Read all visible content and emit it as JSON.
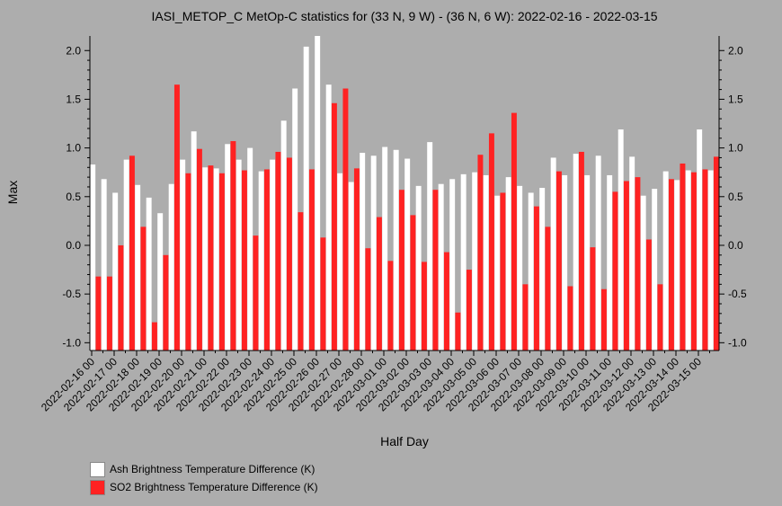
{
  "chart_data": {
    "type": "bar",
    "title": "IASI_METOP_C MetOp-C statistics for (33 N, 9 W) - (36 N, 6 W): 2022-02-16 - 2022-03-15",
    "xlabel": "Half Day",
    "ylabel": "Max",
    "ylim": [
      -1.08,
      2.15
    ],
    "yticks": [
      "-1.0",
      "-0.5",
      "0.0",
      "0.5",
      "1.0",
      "1.5",
      "2.0"
    ],
    "xticks": [
      "2022-02-16 00",
      "2022-02-17 00",
      "2022-02-18 00",
      "2022-02-19 00",
      "2022-02-20 00",
      "2022-02-21 00",
      "2022-02-22 00",
      "2022-02-23 00",
      "2022-02-24 00",
      "2022-02-25 00",
      "2022-02-26 00",
      "2022-02-27 00",
      "2022-02-28 00",
      "2022-03-01 00",
      "2022-03-02 00",
      "2022-03-03 00",
      "2022-03-04 00",
      "2022-03-05 00",
      "2022-03-06 00",
      "2022-03-07 00",
      "2022-03-08 00",
      "2022-03-09 00",
      "2022-03-10 00",
      "2022-03-11 00",
      "2022-03-12 00",
      "2022-03-13 00",
      "2022-03-14 00",
      "2022-03-15 00"
    ],
    "legend_position": "bottom-left",
    "series": [
      {
        "name": "Ash Brightness Temperature Difference (K)",
        "color": "#ffffff",
        "values": [
          0.83,
          0.68,
          0.54,
          0.88,
          0.62,
          0.49,
          0.33,
          0.63,
          0.88,
          1.17,
          0.8,
          0.79,
          1.04,
          0.88,
          1.0,
          0.76,
          0.88,
          1.28,
          1.61,
          2.04,
          2.15,
          1.65,
          0.74,
          0.65,
          0.95,
          0.92,
          1.01,
          0.98,
          0.89,
          0.61,
          1.06,
          0.63,
          0.68,
          0.73,
          0.75,
          0.72,
          0.51,
          0.7,
          0.61,
          0.54,
          0.59,
          0.9,
          0.72,
          0.94,
          0.72,
          0.92,
          0.72,
          1.19,
          0.91,
          0.51,
          0.58,
          0.76,
          0.67,
          0.77,
          1.19,
          0.77
        ]
      },
      {
        "name": "SO2 Brightness Temperature Difference (K)",
        "color": "#ff2222",
        "values": [
          -0.32,
          -0.32,
          0.0,
          0.92,
          0.19,
          -0.79,
          -0.1,
          1.65,
          0.74,
          0.99,
          0.82,
          0.74,
          1.07,
          0.77,
          0.1,
          0.78,
          0.96,
          0.9,
          0.34,
          0.78,
          0.08,
          1.46,
          1.61,
          0.79,
          -0.03,
          0.29,
          -0.16,
          0.57,
          0.31,
          -0.17,
          0.57,
          -0.07,
          -0.69,
          -0.25,
          0.93,
          1.15,
          0.54,
          1.36,
          -0.4,
          0.4,
          0.19,
          0.76,
          -0.42,
          0.96,
          -0.02,
          -0.45,
          0.55,
          0.66,
          0.7,
          0.06,
          -0.4,
          0.68,
          0.84,
          0.75,
          0.78,
          0.91
        ]
      }
    ]
  }
}
